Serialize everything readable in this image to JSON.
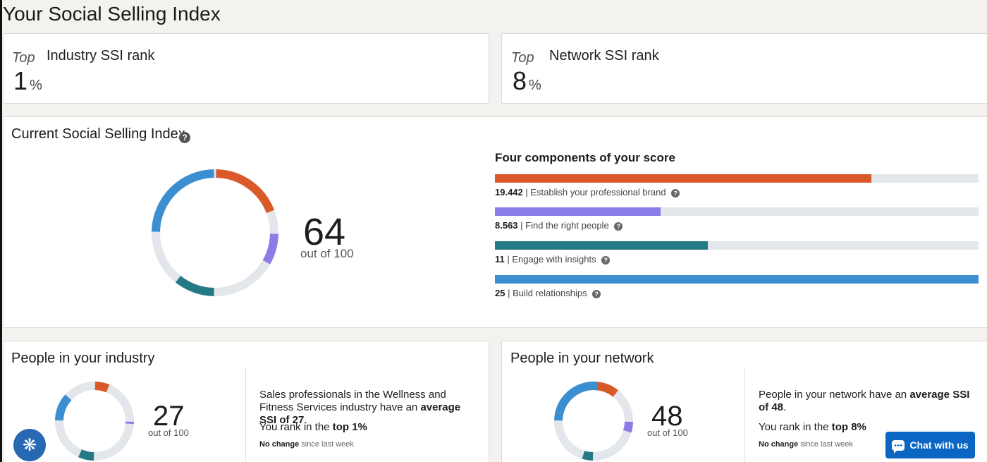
{
  "page": {
    "title": "Your Social Selling Index"
  },
  "industry_rank": {
    "top_label": "Top",
    "value": "1",
    "unit": "%",
    "label": "Industry SSI rank"
  },
  "network_rank": {
    "top_label": "Top",
    "value": "8",
    "unit": "%",
    "label": "Network SSI rank"
  },
  "current_ssi": {
    "title": "Current Social Selling Index",
    "help": "?",
    "score": "64",
    "out_of": "out of 100",
    "components_heading": "Four components of your score",
    "components": [
      {
        "value": "19.442",
        "label": "| Establish your professional brand",
        "fraction": 0.778,
        "color": "#d9592a"
      },
      {
        "value": "8.563",
        "label": "| Find the right people",
        "fraction": 0.342,
        "color": "#8a7de8"
      },
      {
        "value": "11",
        "label": "| Engage with insights",
        "fraction": 0.44,
        "color": "#247a84"
      },
      {
        "value": "25",
        "label": "| Build relationships",
        "fraction": 1.0,
        "color": "#3b8fd1"
      }
    ]
  },
  "industry_people": {
    "title": "People in your industry",
    "score": "27",
    "out_of": "out of 100",
    "desc_plain": "Sales professionals in the Wellness and Fitness Services industry have an ",
    "desc_bold": "average SSI of 27",
    "desc_end": ".",
    "rank_plain": "You rank in the ",
    "rank_bold": "top 1%",
    "change_bold": "No change",
    "change_plain": " since last week",
    "components": [
      6.5,
      1.5,
      7.0,
      12.0
    ]
  },
  "network_people": {
    "title": "People in your network",
    "score": "48",
    "out_of": "out of 100",
    "desc_plain": "People in your network have an ",
    "desc_bold": "average SSI of 48",
    "desc_end": ".",
    "rank_plain": "You rank in the ",
    "rank_bold": "top 8%",
    "change_bold": "No change",
    "change_plain": " since last week",
    "components": [
      11.0,
      5.0,
      5.0,
      27.0
    ]
  },
  "widgets": {
    "chat_label": "Chat with us",
    "fab_icon": "gear-icon"
  },
  "colors": {
    "brand": "#d9592a",
    "people": "#8a7de8",
    "insights": "#247a84",
    "relationships": "#3b8fd1",
    "track": "#e3e6ea"
  }
}
